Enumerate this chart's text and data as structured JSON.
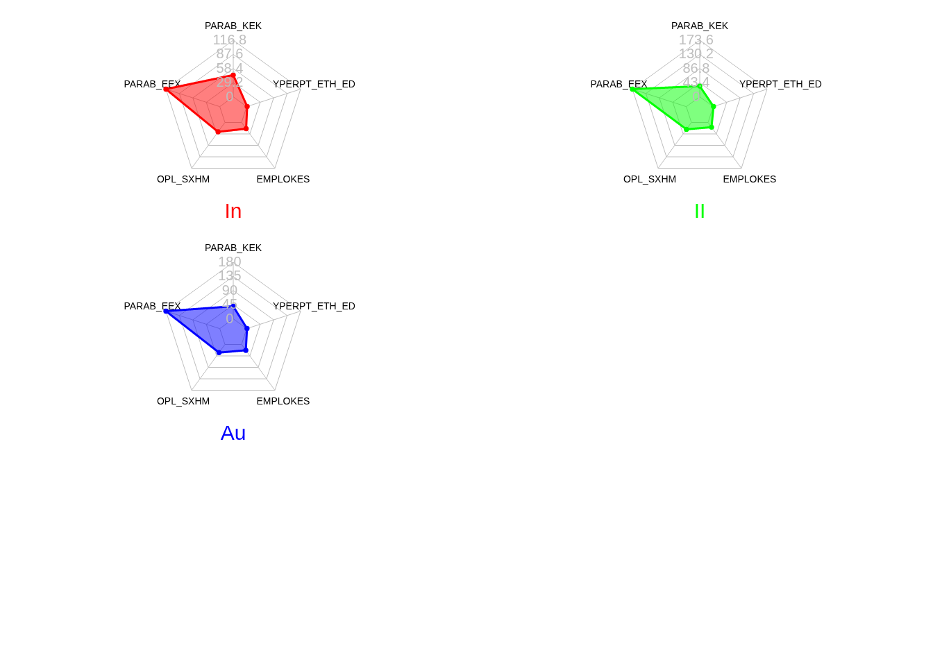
{
  "chart_data": [
    {
      "type": "radar",
      "title": "In",
      "categories": [
        "PARAB_KEK",
        "YPERPT_ETH_ED",
        "EMPLOKES",
        "OPL_SXHM",
        "PARAB_EEX"
      ],
      "series": [
        {
          "color": "#ff0000",
          "values": [
            45,
            1,
            16,
            24,
            116.8
          ]
        }
      ],
      "ylim": [
        -29.2,
        116.8
      ],
      "yticks": [
        0,
        29.2,
        58.4,
        87.6,
        116.8
      ],
      "grid": true,
      "marker": "circle"
    },
    {
      "type": "radar",
      "title": "II",
      "categories": [
        "PARAB_KEK",
        "YPERPT_ETH_ED",
        "EMPLOKES",
        "OPL_SXHM",
        "PARAB_EEX"
      ],
      "series": [
        {
          "color": "#00ff00",
          "values": [
            33,
            1,
            18,
            26,
            173.6
          ]
        }
      ],
      "ylim": [
        -43.4,
        173.6
      ],
      "yticks": [
        0,
        43.4,
        86.8,
        130.2,
        173.6
      ],
      "grid": true,
      "marker": "circle"
    },
    {
      "type": "radar",
      "title": "Au",
      "categories": [
        "PARAB_KEK",
        "YPERPT_ETH_ED",
        "EMPLOKES",
        "OPL_SXHM",
        "PARAB_EEX"
      ],
      "series": [
        {
          "color": "#0000ff",
          "values": [
            40,
            1,
            23,
            32,
            180
          ]
        }
      ],
      "ylim": [
        -45,
        180
      ],
      "yticks": [
        0,
        45,
        90,
        135,
        180
      ],
      "grid": true,
      "marker": "circle"
    }
  ]
}
